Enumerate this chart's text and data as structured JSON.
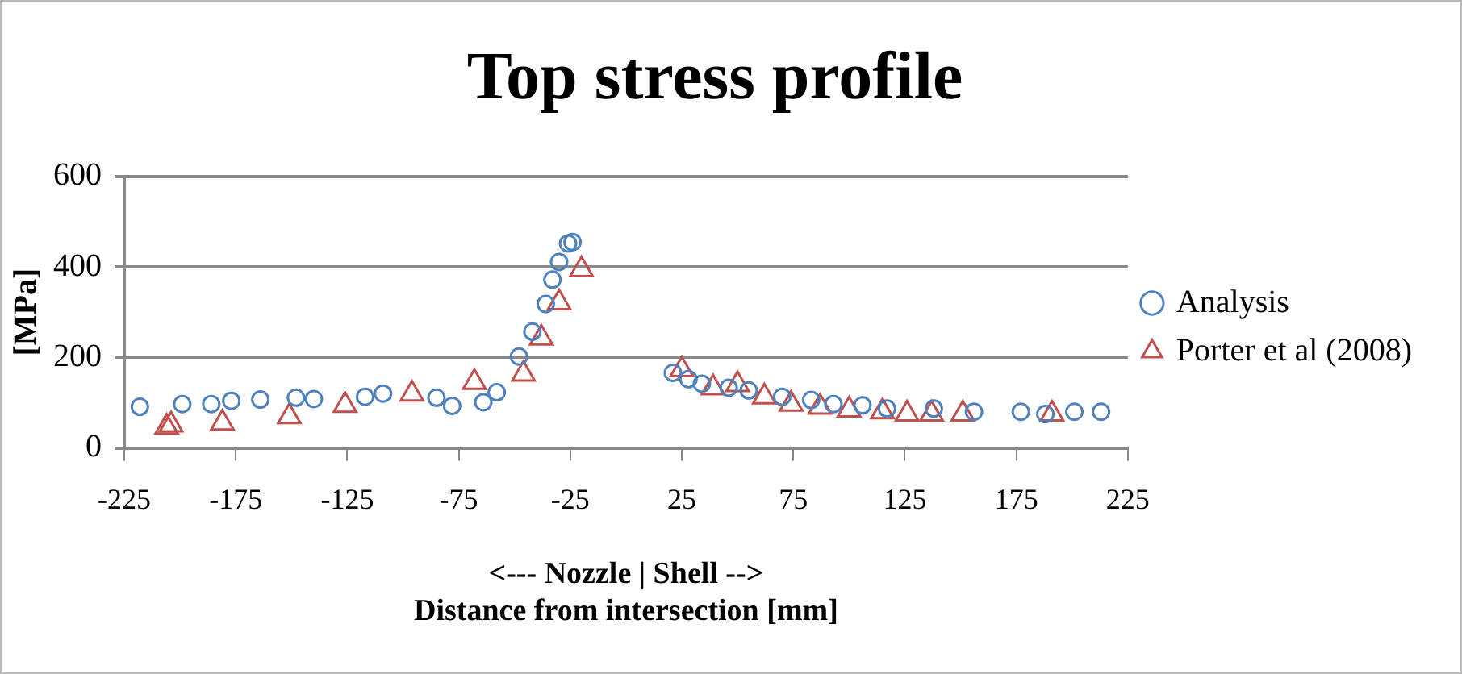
{
  "chart_data": {
    "type": "scatter",
    "title": "Top stress profile",
    "xlabel": "<--- Nozzle | Shell -->\nDistance from intersection [mm]",
    "ylabel": "[MPa]",
    "xlim": [
      -225,
      225
    ],
    "xticks": [
      -225,
      -175,
      -125,
      -75,
      -25,
      25,
      75,
      125,
      175,
      225
    ],
    "ylim": [
      0,
      600
    ],
    "yticks": [
      0,
      200,
      400,
      600
    ],
    "grid": "y",
    "legend": "right",
    "series": [
      {
        "name": "Analysis",
        "color": "#4f81bd",
        "marker": "circle",
        "x": [
          -218,
          -199,
          -186,
          -177,
          -164,
          -148,
          -140,
          -117,
          -109,
          -85,
          -78,
          -64,
          -58,
          -48,
          -42,
          -36,
          -33,
          -30,
          -26,
          -24,
          21,
          28,
          34,
          46,
          55,
          70,
          83,
          93,
          106,
          117,
          138,
          156,
          177,
          188,
          201,
          213
        ],
        "values": [
          91,
          97,
          97,
          104,
          107,
          111,
          108,
          113,
          120,
          111,
          93,
          101,
          123,
          202,
          257,
          318,
          372,
          411,
          452,
          455,
          166,
          152,
          142,
          133,
          127,
          113,
          106,
          97,
          94,
          87,
          87,
          80,
          80,
          75,
          80,
          80
        ]
      },
      {
        "name": "Porter et al (2008)",
        "color": "#c0504d",
        "marker": "triangle",
        "x": [
          -206,
          -204,
          -181,
          -151,
          -126,
          -96,
          -68,
          -46,
          -38,
          -30,
          -20,
          25,
          39,
          50,
          62,
          74,
          87,
          100,
          115,
          126,
          137,
          151,
          191
        ],
        "values": [
          46,
          51,
          55,
          69,
          94,
          119,
          145,
          163,
          243,
          321,
          394,
          173,
          133,
          140,
          113,
          97,
          90,
          84,
          80,
          75,
          75,
          75,
          75
        ]
      }
    ]
  }
}
